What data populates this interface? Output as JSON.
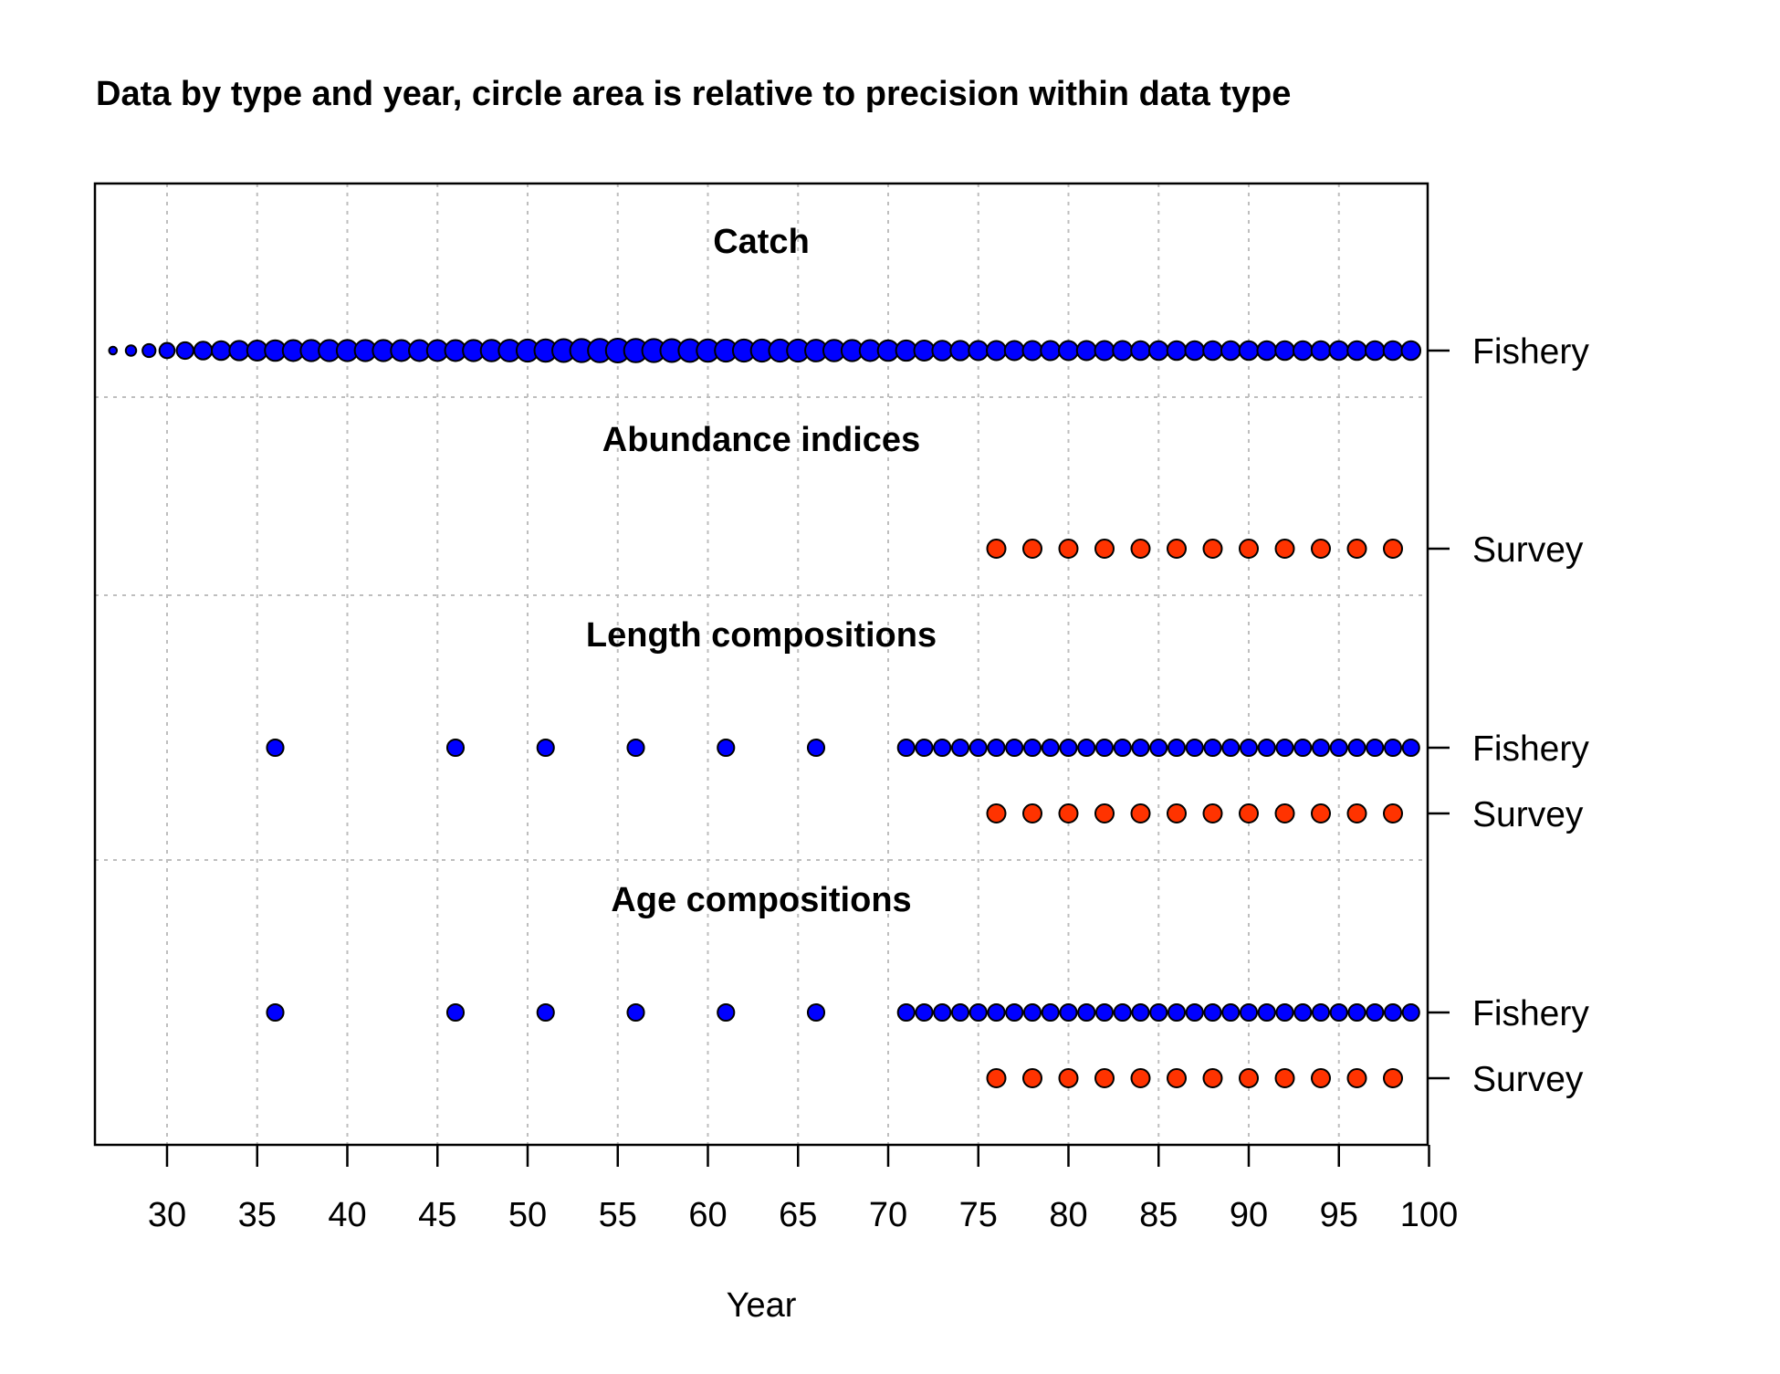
{
  "chart_data": {
    "type": "scatter",
    "title": "Data by type and year, circle area is relative to precision within data type",
    "xlabel": "Year",
    "ylabel": "",
    "xlim": [
      26,
      100
    ],
    "xticks": [
      30,
      35,
      40,
      45,
      50,
      55,
      60,
      65,
      70,
      75,
      80,
      85,
      90,
      95,
      100
    ],
    "grid": true,
    "colors": {
      "fishery": "#0000FF",
      "survey": "#FF3300",
      "outline": "#000000",
      "grid": "#BEBEBE"
    },
    "sections": [
      {
        "name": "Catch",
        "series": [
          {
            "name": "Fishery",
            "color": "fishery",
            "x": [
              27,
              28,
              29,
              30,
              31,
              32,
              33,
              34,
              35,
              36,
              37,
              38,
              39,
              40,
              41,
              42,
              43,
              44,
              45,
              46,
              47,
              48,
              49,
              50,
              51,
              52,
              53,
              54,
              55,
              56,
              57,
              58,
              59,
              60,
              61,
              62,
              63,
              64,
              65,
              66,
              67,
              68,
              69,
              70,
              71,
              72,
              73,
              74,
              75,
              76,
              77,
              78,
              79,
              80,
              81,
              82,
              83,
              84,
              85,
              86,
              87,
              88,
              89,
              90,
              91,
              92,
              93,
              94,
              95,
              96,
              97,
              98,
              99
            ],
            "values": [
              0.1,
              0.18,
              0.28,
              0.38,
              0.46,
              0.52,
              0.58,
              0.62,
              0.66,
              0.7,
              0.72,
              0.74,
              0.74,
              0.74,
              0.74,
              0.74,
              0.72,
              0.72,
              0.72,
              0.72,
              0.74,
              0.76,
              0.78,
              0.8,
              0.82,
              0.85,
              0.88,
              0.9,
              0.92,
              0.9,
              0.88,
              0.86,
              0.84,
              0.82,
              0.8,
              0.8,
              0.8,
              0.8,
              0.8,
              0.78,
              0.76,
              0.74,
              0.72,
              0.7,
              0.68,
              0.66,
              0.64,
              0.62,
              0.6,
              0.6,
              0.6,
              0.6,
              0.6,
              0.6,
              0.6,
              0.6,
              0.6,
              0.58,
              0.58,
              0.58,
              0.58,
              0.58,
              0.58,
              0.58,
              0.58,
              0.58,
              0.58,
              0.58,
              0.58,
              0.58,
              0.58,
              0.58,
              0.58
            ]
          }
        ]
      },
      {
        "name": "Abundance indices",
        "series": [
          {
            "name": "Survey",
            "color": "survey",
            "x": [
              76,
              78,
              80,
              82,
              84,
              86,
              88,
              90,
              92,
              94,
              96,
              98
            ],
            "values": [
              1,
              1,
              1,
              1,
              1,
              1,
              1,
              1,
              1,
              1,
              1,
              1
            ]
          }
        ]
      },
      {
        "name": "Length compositions",
        "series": [
          {
            "name": "Fishery",
            "color": "fishery",
            "x": [
              36,
              46,
              51,
              56,
              61,
              66,
              71,
              72,
              73,
              74,
              75,
              76,
              77,
              78,
              79,
              80,
              81,
              82,
              83,
              84,
              85,
              86,
              87,
              88,
              89,
              90,
              91,
              92,
              93,
              94,
              95,
              96,
              97,
              98,
              99
            ],
            "values": [
              0.45,
              0.45,
              0.45,
              0.45,
              0.45,
              0.45,
              0.45,
              0.45,
              0.45,
              0.45,
              0.45,
              0.45,
              0.45,
              0.45,
              0.45,
              0.45,
              0.45,
              0.45,
              0.45,
              0.45,
              0.45,
              0.45,
              0.45,
              0.45,
              0.45,
              0.45,
              0.45,
              0.45,
              0.45,
              0.45,
              0.45,
              0.45,
              0.45,
              0.45,
              0.45
            ]
          },
          {
            "name": "Survey",
            "color": "survey",
            "x": [
              76,
              78,
              80,
              82,
              84,
              86,
              88,
              90,
              92,
              94,
              96,
              98
            ],
            "values": [
              1,
              1,
              1,
              1,
              1,
              1,
              1,
              1,
              1,
              1,
              1,
              1
            ]
          }
        ]
      },
      {
        "name": "Age compositions",
        "series": [
          {
            "name": "Fishery",
            "color": "fishery",
            "x": [
              36,
              46,
              51,
              56,
              61,
              66,
              71,
              72,
              73,
              74,
              75,
              76,
              77,
              78,
              79,
              80,
              81,
              82,
              83,
              84,
              85,
              86,
              87,
              88,
              89,
              90,
              91,
              92,
              93,
              94,
              95,
              96,
              97,
              98,
              99
            ],
            "values": [
              0.45,
              0.45,
              0.45,
              0.45,
              0.45,
              0.45,
              0.45,
              0.45,
              0.45,
              0.45,
              0.45,
              0.45,
              0.45,
              0.45,
              0.45,
              0.45,
              0.45,
              0.45,
              0.45,
              0.45,
              0.45,
              0.45,
              0.45,
              0.45,
              0.45,
              0.45,
              0.45,
              0.45,
              0.45,
              0.45,
              0.45,
              0.45,
              0.45,
              0.45,
              0.45
            ]
          },
          {
            "name": "Survey",
            "color": "survey",
            "x": [
              76,
              78,
              80,
              82,
              84,
              86,
              88,
              90,
              92,
              94,
              96,
              98
            ],
            "values": [
              1,
              1,
              1,
              1,
              1,
              1,
              1,
              1,
              1,
              1,
              1,
              1
            ]
          }
        ]
      }
    ]
  }
}
